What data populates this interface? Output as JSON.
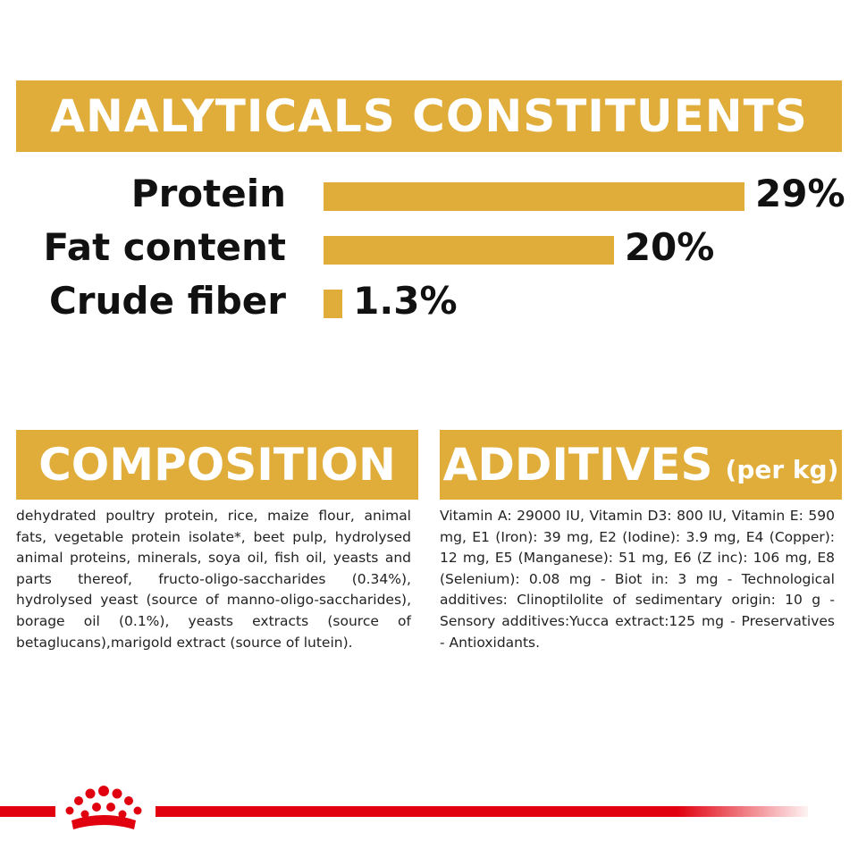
{
  "analytical": {
    "title": "ANALYTICALS CONSTITUENTS"
  },
  "chart_data": {
    "type": "bar",
    "orientation": "horizontal",
    "categories": [
      "Protein",
      "Fat content",
      "Crude fiber"
    ],
    "values": [
      29,
      20,
      1.3
    ],
    "value_labels": [
      "29%",
      "20%",
      "1.3%"
    ],
    "unit": "%",
    "xlim": [
      0,
      29
    ],
    "grid": false,
    "color": "#e0ac3a"
  },
  "composition": {
    "title": "COMPOSITION",
    "text": "dehydrated poultry protein, rice, maize flour, animal fats, vegetable protein isolate*, beet pulp, hydrolysed animal proteins, minerals, soya oil, fish oil, yeasts and parts thereof, fructo-oligo-saccharides (0.34%), hydrolysed yeast (source of manno-oligo-saccharides), borage oil (0.1%), yeasts extracts (source of betaglucans),marigold extract (source of lutein)."
  },
  "additives": {
    "title": "ADDITIVES",
    "title_suffix": "(per kg)",
    "text": "Vitamin A: 29000 IU, Vitamin D3: 800 IU, Vitamin E: 590 mg, E1 (Iron): 39 mg, E2 (Iodine): 3.9 mg, E4 (Copper): 12 mg, E5 (Manganese): 51 mg, E6 (Z inc): 106 mg, E8 (Selenium): 0.08 mg - Biot in: 3 mg - Technological additives: Clinoptilolite of sedimentary origin: 10 g - Sensory additives:Yucca extract:125 mg - Preservatives - Antioxidants."
  },
  "colors": {
    "accent": "#e0ac3a",
    "brand_red": "#e1000f"
  },
  "footer": {
    "logo_icon": "royal-crown-icon"
  }
}
